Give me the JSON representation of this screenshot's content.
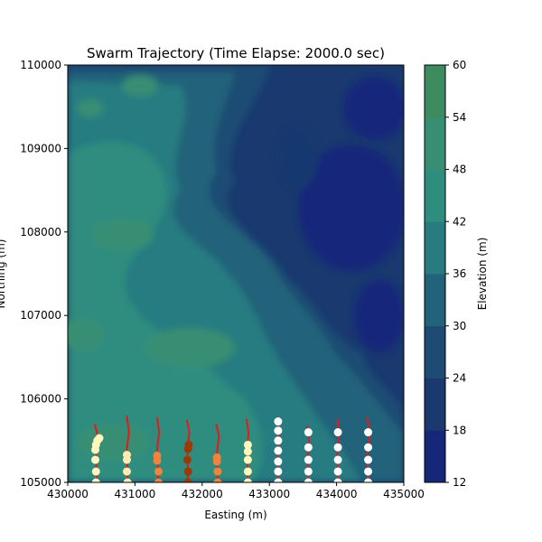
{
  "chart_data": {
    "type": "contour",
    "title": "Swarm Trajectory (Time Elapse: 2000.0 sec)",
    "xlabel": "Easting (m)",
    "ylabel": "Northing (m)",
    "xlim": [
      430000,
      435000
    ],
    "ylim": [
      105000,
      110000
    ],
    "x_ticks": [
      430000,
      431000,
      432000,
      433000,
      434000,
      435000
    ],
    "y_ticks": [
      105000,
      106000,
      107000,
      108000,
      109000,
      110000
    ],
    "x_tick_labels": [
      "430000",
      "431000",
      "432000",
      "433000",
      "434000",
      "435000"
    ],
    "y_tick_labels": [
      "105000",
      "106000",
      "107000",
      "108000",
      "109000",
      "110000"
    ],
    "colorbar": {
      "label": "Elevation (m)",
      "range": [
        12,
        60
      ],
      "ticks": [
        12,
        18,
        24,
        30,
        36,
        42,
        48,
        54,
        60
      ],
      "tick_labels": [
        "12",
        "18",
        "24",
        "30",
        "36",
        "42",
        "48",
        "54",
        "60"
      ],
      "level_colors": [
        "#16277a",
        "#19396f",
        "#1d4b73",
        "#22627a",
        "#287c80",
        "#2f8d7f",
        "#378e73",
        "#3c8c5f"
      ]
    },
    "trajectory_color": "#e31a1c",
    "grid": false,
    "swarms": [
      {
        "color": "#fff7bc",
        "trajectory": [
          [
            430400,
            105700
          ],
          [
            430450,
            105550
          ],
          [
            430420,
            105350
          ],
          [
            430430,
            105000
          ]
        ],
        "agents": [
          [
            430420,
            105000
          ],
          [
            430420,
            105130
          ],
          [
            430410,
            105270
          ],
          [
            430410,
            105390
          ],
          [
            430420,
            105450
          ],
          [
            430440,
            105500
          ],
          [
            430470,
            105530
          ]
        ]
      },
      {
        "color": "#ffecb3",
        "trajectory": [
          [
            430880,
            105800
          ],
          [
            430910,
            105600
          ],
          [
            430880,
            105400
          ],
          [
            430890,
            105000
          ]
        ],
        "agents": [
          [
            430890,
            105000
          ],
          [
            430880,
            105130
          ],
          [
            430880,
            105270
          ],
          [
            430880,
            105330
          ]
        ]
      },
      {
        "color": "#f0843c",
        "trajectory": [
          [
            431330,
            105780
          ],
          [
            431360,
            105600
          ],
          [
            431330,
            105400
          ],
          [
            431350,
            105000
          ]
        ],
        "agents": [
          [
            431350,
            105000
          ],
          [
            431350,
            105130
          ],
          [
            431330,
            105260
          ],
          [
            431330,
            105320
          ]
        ]
      },
      {
        "color": "#9c3a06",
        "trajectory": [
          [
            431770,
            105750
          ],
          [
            431810,
            105600
          ],
          [
            431780,
            105400
          ],
          [
            431790,
            105000
          ]
        ],
        "agents": [
          [
            431790,
            105000
          ],
          [
            431790,
            105130
          ],
          [
            431780,
            105270
          ],
          [
            431790,
            105400
          ],
          [
            431800,
            105450
          ]
        ]
      },
      {
        "color": "#f0843c",
        "trajectory": [
          [
            432210,
            105700
          ],
          [
            432250,
            105550
          ],
          [
            432220,
            105350
          ],
          [
            432230,
            105000
          ]
        ],
        "agents": [
          [
            432230,
            105000
          ],
          [
            432230,
            105130
          ],
          [
            432220,
            105250
          ],
          [
            432220,
            105300
          ]
        ]
      },
      {
        "color": "#fff7bc",
        "trajectory": [
          [
            432660,
            105760
          ],
          [
            432690,
            105600
          ],
          [
            432670,
            105400
          ],
          [
            432680,
            105000
          ]
        ],
        "agents": [
          [
            432680,
            105000
          ],
          [
            432680,
            105130
          ],
          [
            432680,
            105270
          ],
          [
            432680,
            105370
          ],
          [
            432680,
            105450
          ]
        ]
      },
      {
        "color": "#ffffff",
        "trajectory": [
          [
            433120,
            105720
          ],
          [
            433150,
            105550
          ],
          [
            433120,
            105350
          ],
          [
            433130,
            105000
          ]
        ],
        "agents": [
          [
            433130,
            105000
          ],
          [
            433130,
            105130
          ],
          [
            433130,
            105250
          ],
          [
            433130,
            105380
          ],
          [
            433130,
            105500
          ],
          [
            433130,
            105620
          ],
          [
            433130,
            105730
          ]
        ]
      },
      {
        "color": "#ffffff",
        "trajectory": [
          [
            433560,
            105680
          ],
          [
            433590,
            105500
          ],
          [
            433570,
            105300
          ],
          [
            433580,
            105000
          ]
        ],
        "agents": [
          [
            433580,
            105000
          ],
          [
            433580,
            105130
          ],
          [
            433580,
            105270
          ],
          [
            433580,
            105420
          ],
          [
            433580,
            105600
          ]
        ]
      },
      {
        "color": "#ffffff",
        "trajectory": [
          [
            434010,
            105760
          ],
          [
            434040,
            105550
          ],
          [
            434010,
            105350
          ],
          [
            434020,
            105000
          ]
        ],
        "agents": [
          [
            434020,
            105000
          ],
          [
            434020,
            105130
          ],
          [
            434020,
            105270
          ],
          [
            434020,
            105420
          ],
          [
            434020,
            105600
          ]
        ]
      },
      {
        "color": "#ffffff",
        "trajectory": [
          [
            434460,
            105780
          ],
          [
            434490,
            105550
          ],
          [
            434460,
            105350
          ],
          [
            434470,
            105000
          ]
        ],
        "agents": [
          [
            434470,
            105000
          ],
          [
            434470,
            105130
          ],
          [
            434470,
            105270
          ],
          [
            434470,
            105420
          ],
          [
            434470,
            105600
          ]
        ]
      }
    ]
  }
}
